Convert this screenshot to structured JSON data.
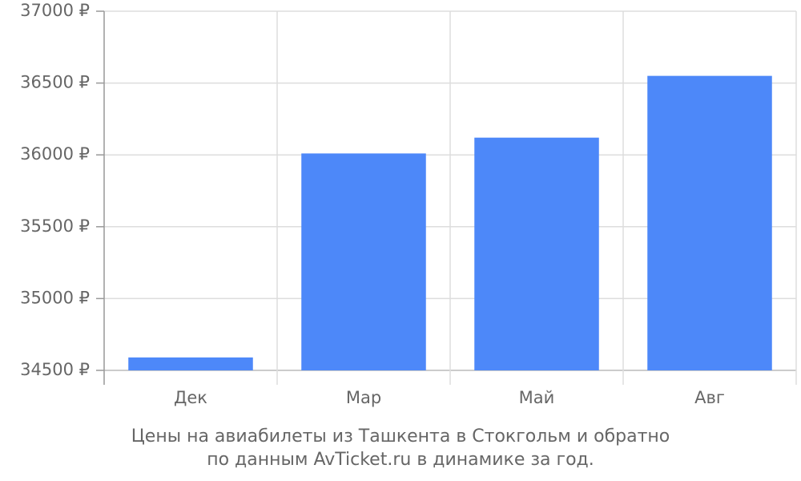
{
  "chart_data": {
    "type": "bar",
    "title": "Цены на авиабилеты из Ташкента в Стокгольм и обратно\nпо данным AvTicket.ru в динамике за год.",
    "categories": [
      "Дек",
      "Мар",
      "Май",
      "Авг"
    ],
    "values": [
      34590,
      36010,
      36120,
      36550
    ],
    "color": "#4d88f9",
    "ylim": [
      34500,
      37000
    ],
    "yticks": [
      {
        "value": 34500,
        "label": "34500 ₽"
      },
      {
        "value": 35000,
        "label": "35000 ₽"
      },
      {
        "value": 35500,
        "label": "35500 ₽"
      },
      {
        "value": 36000,
        "label": "36000 ₽"
      },
      {
        "value": 36500,
        "label": "36500 ₽"
      },
      {
        "value": 37000,
        "label": "37000 ₽"
      }
    ],
    "grid": true
  }
}
